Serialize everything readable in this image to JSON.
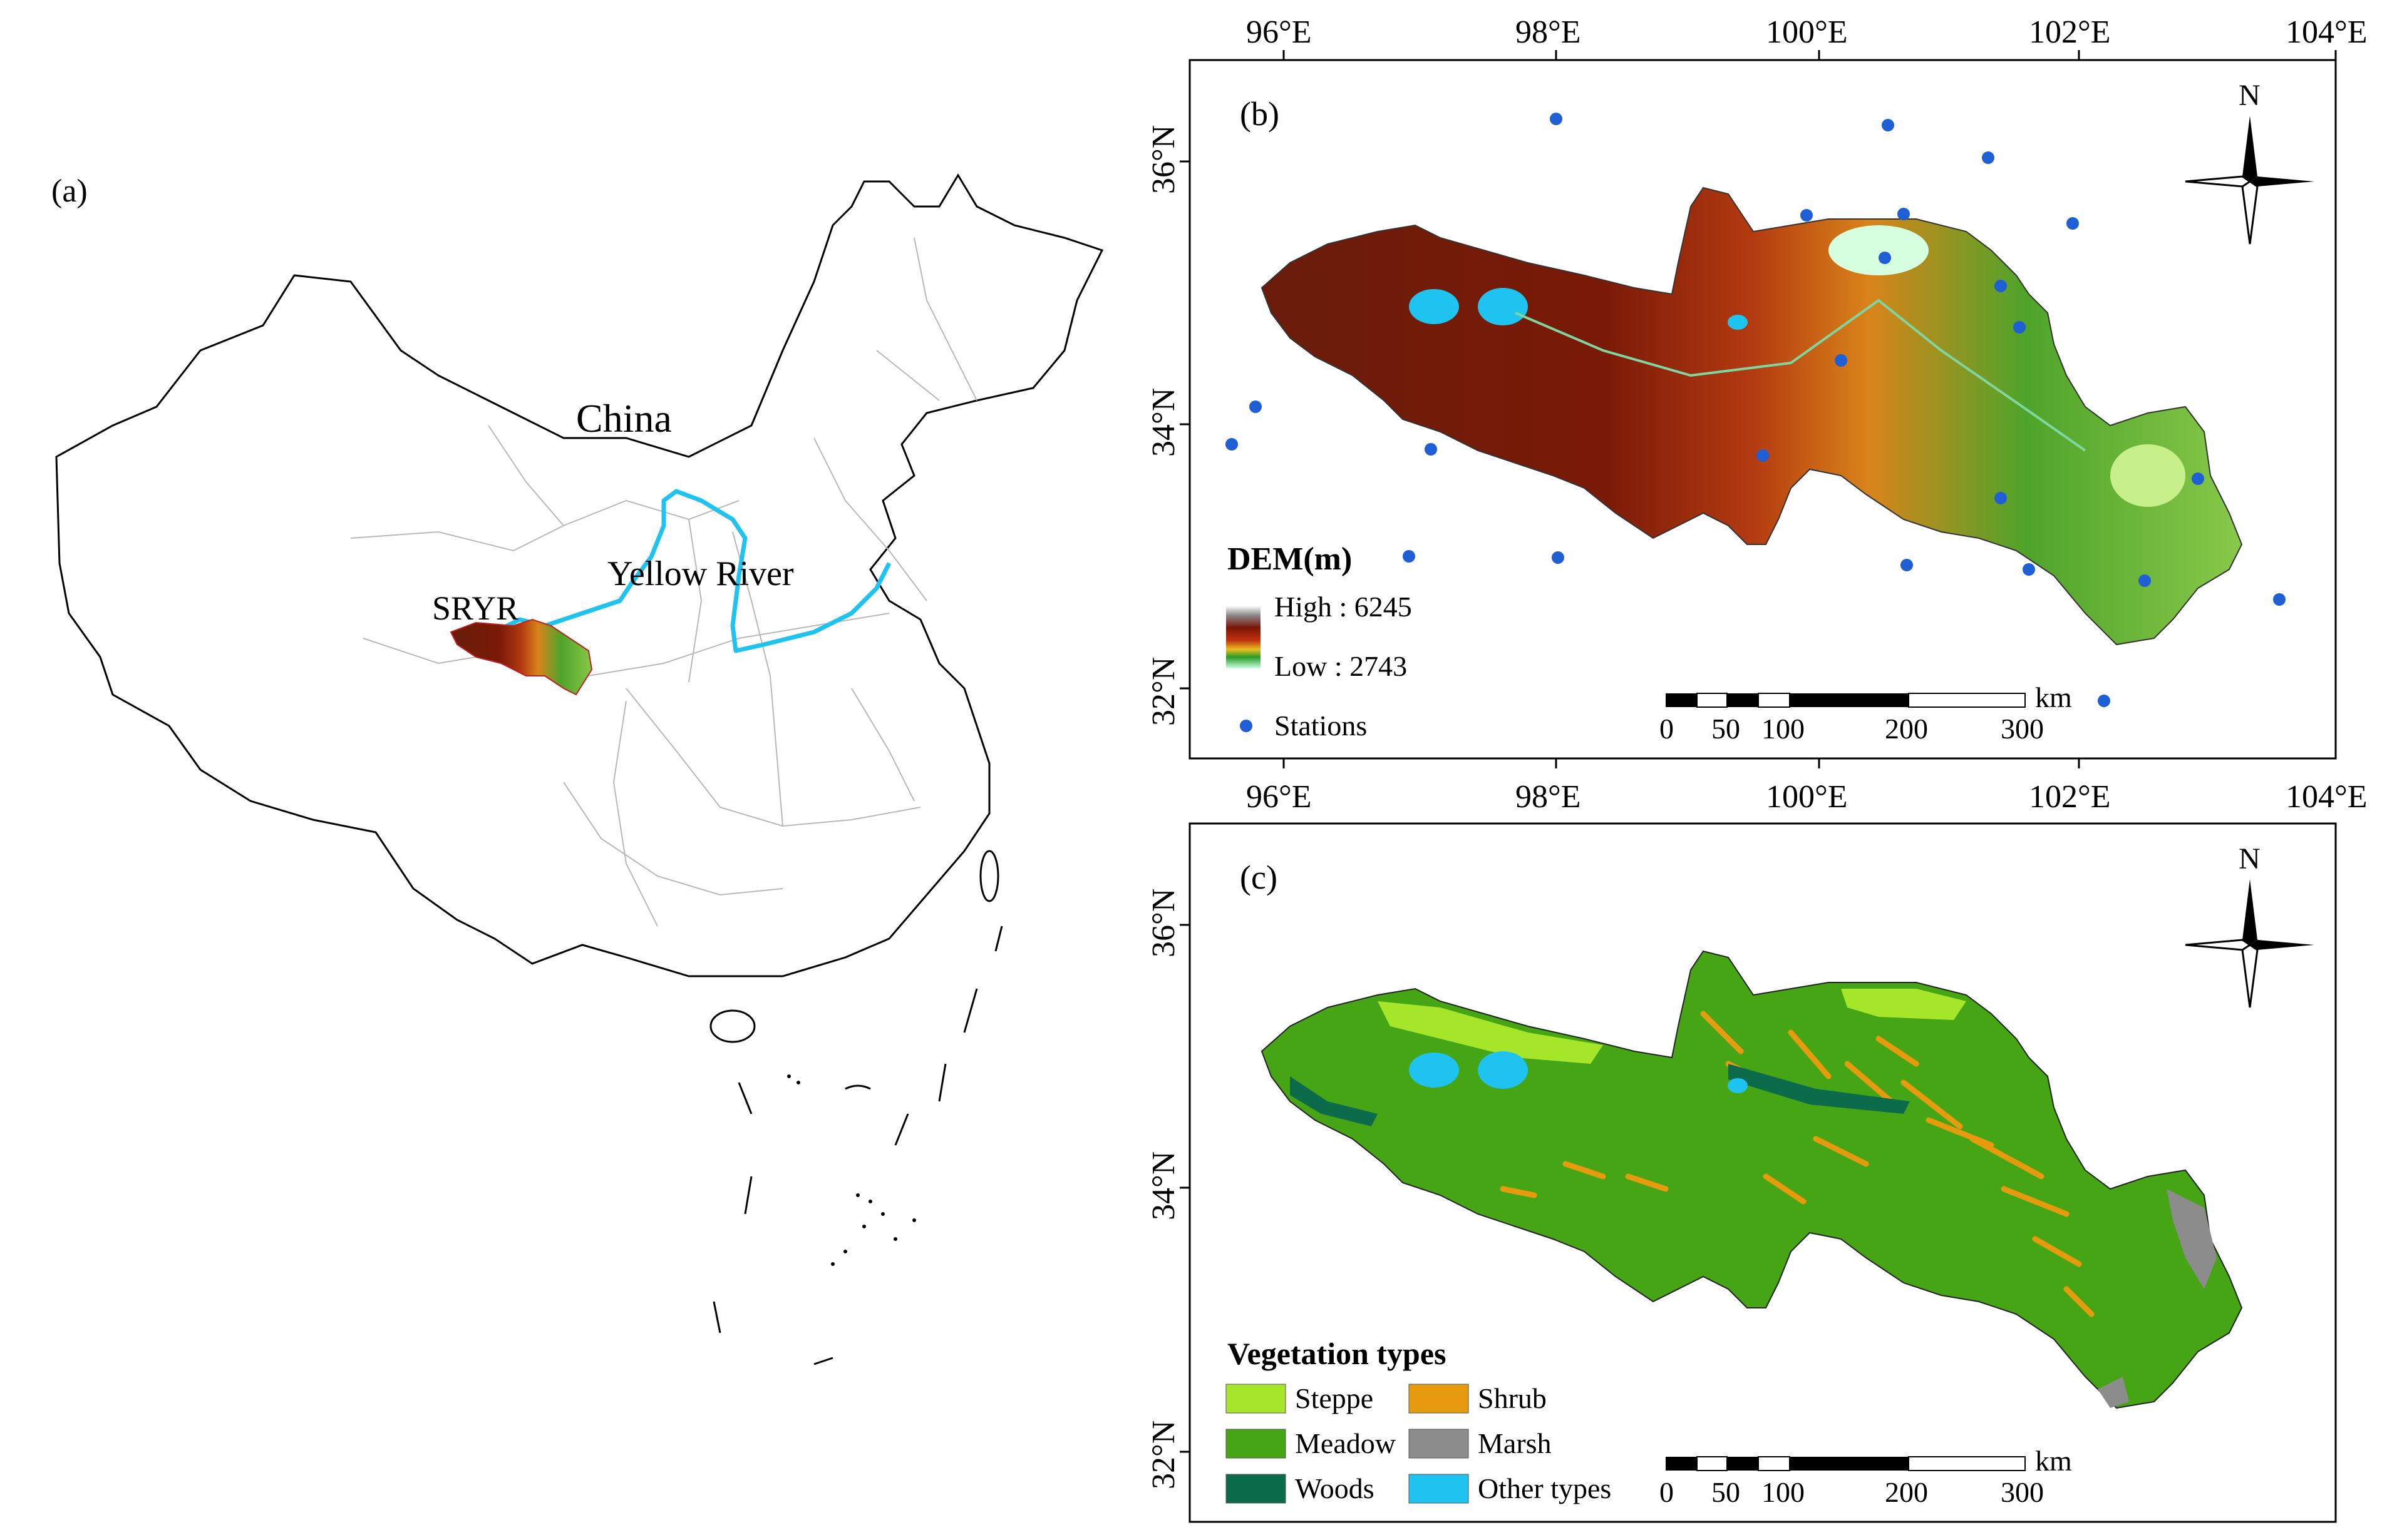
{
  "panel_a": {
    "label": "(a)",
    "country_label": "China",
    "river_label": "Yellow River",
    "region_label": "SRYR"
  },
  "panel_b": {
    "label": "(b)",
    "top_lon_ticks": [
      "96°E",
      "98°E",
      "100°E",
      "102°E",
      "104°E"
    ],
    "bottom_lon_ticks": [
      "96°E",
      "98°E",
      "100°E",
      "102°E",
      "104°E"
    ],
    "lat_ticks": [
      "36°N",
      "34°N",
      "32°N"
    ],
    "north_label": "N",
    "legend": {
      "title": "DEM(m)",
      "high_label": "High : 6245",
      "low_label": "Low : 2743",
      "stations_label": "Stations"
    },
    "scalebar": {
      "unit": "km",
      "ticks": [
        "0",
        "50",
        "100",
        "200",
        "300"
      ]
    }
  },
  "panel_c": {
    "label": "(c)",
    "lat_ticks": [
      "36°N",
      "34°N",
      "32°N"
    ],
    "north_label": "N",
    "legend": {
      "title": "Vegetation types",
      "items": [
        {
          "label": "Steppe",
          "color": "#a6e62a"
        },
        {
          "label": "Shrub",
          "color": "#e69a0d"
        },
        {
          "label": "Meadow",
          "color": "#45a514"
        },
        {
          "label": "Marsh",
          "color": "#8c8c8c"
        },
        {
          "label": "Woods",
          "color": "#0b6b4a"
        },
        {
          "label": "Other types",
          "color": "#1ec3f0"
        }
      ]
    },
    "scalebar": {
      "unit": "km",
      "ticks": [
        "0",
        "50",
        "100",
        "200",
        "300"
      ]
    }
  },
  "colors": {
    "dem_high": "#8b1a0a",
    "dem_mid": "#e0a020",
    "dem_low": "#2fa82a",
    "river": "#1ec3f0",
    "station": "#1f5fd6"
  }
}
